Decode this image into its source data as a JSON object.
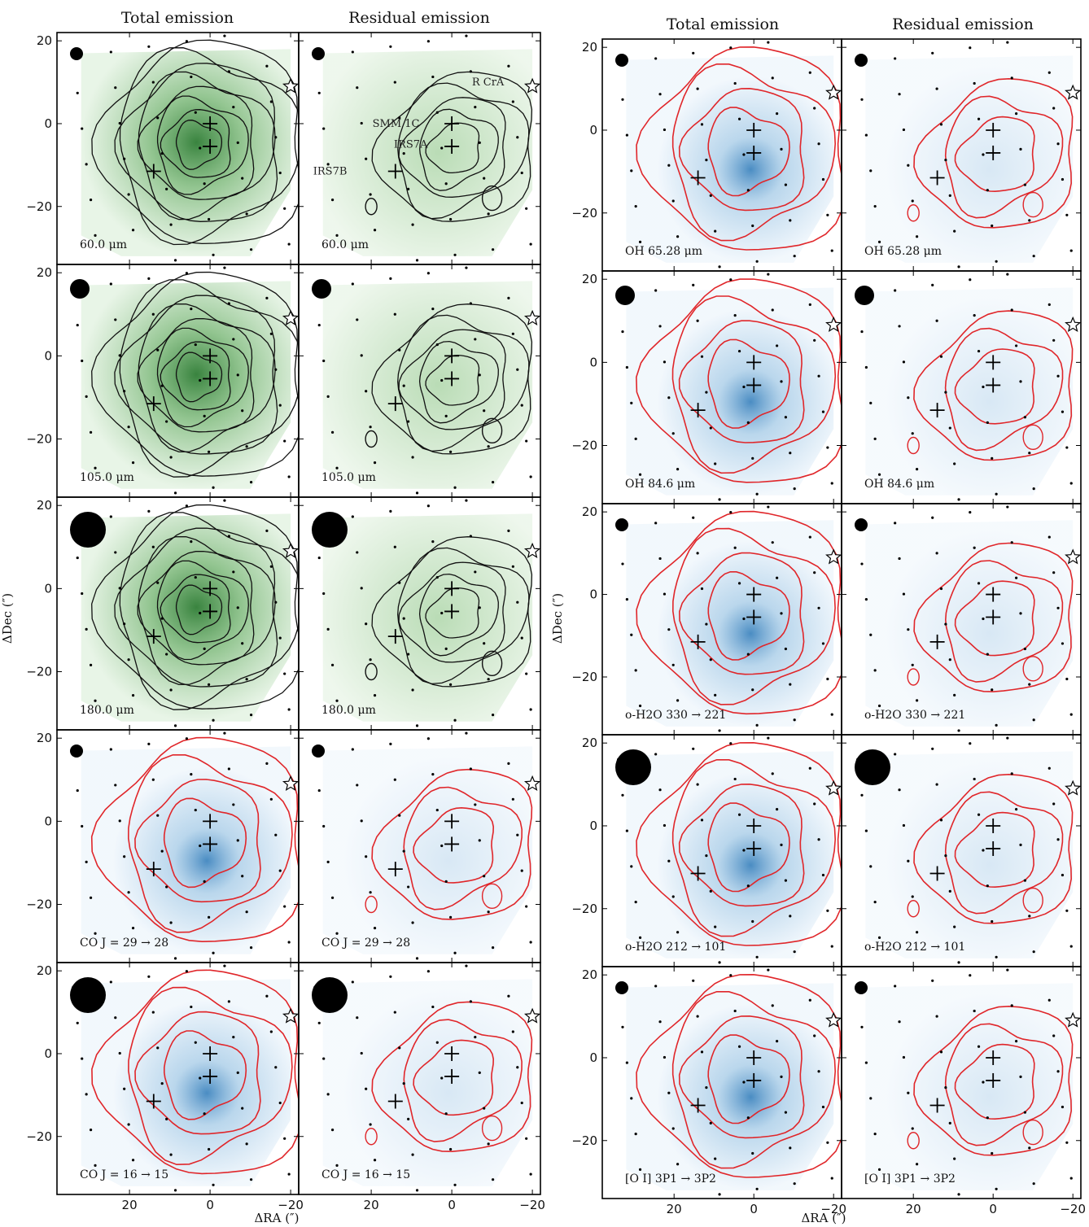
{
  "figure": {
    "left_column_titles": [
      "Total emission",
      "Residual emission"
    ],
    "right_column_titles": [
      "Total emission",
      "Residual emission"
    ],
    "y_axis_label": "ΔDec (″)",
    "x_axis_label": "ΔRA (″)",
    "y_ticks": [
      "20",
      "0",
      "−20"
    ],
    "x_ticks": [
      "20",
      "0",
      "−20"
    ],
    "source_labels": [
      "R CrA",
      "SMM 1C",
      "IRS7A",
      "IRS7B"
    ]
  },
  "left_rows": [
    {
      "label": "60.0 μm",
      "map": "continuum",
      "beam": "small",
      "color": "#3d8f3d"
    },
    {
      "label": "105.0 μm",
      "map": "continuum",
      "beam": "medium",
      "color": "#3d8f3d"
    },
    {
      "label": "180.0 μm",
      "map": "continuum",
      "beam": "large",
      "color": "#3d8f3d"
    },
    {
      "label": "CO J = 29 → 28",
      "map": "line",
      "beam": "small",
      "color": "#2a78b8"
    },
    {
      "label": "CO J = 16 → 15",
      "map": "line",
      "beam": "large",
      "color": "#2a78b8"
    }
  ],
  "right_rows": [
    {
      "label": "OH 65.28 μm",
      "map": "line",
      "beam": "small",
      "color": "#2a78b8"
    },
    {
      "label": "OH 84.6 μm",
      "map": "line",
      "beam": "medium",
      "color": "#2a78b8"
    },
    {
      "label": "o-H2O 330 → 221",
      "map": "line",
      "beam": "small",
      "color": "#2a78b8"
    },
    {
      "label": "o-H2O 212 → 101",
      "map": "line",
      "beam": "large",
      "color": "#2a78b8"
    },
    {
      "label": "[O I] 3P1 → 3P2",
      "map": "line",
      "beam": "small",
      "color": "#2a78b8"
    }
  ],
  "colors": {
    "continuum_contour": "#111111",
    "line_contour": "#e0262a",
    "continuum_fill": "#3d8f3d",
    "line_fill": "#2a78b8"
  }
}
